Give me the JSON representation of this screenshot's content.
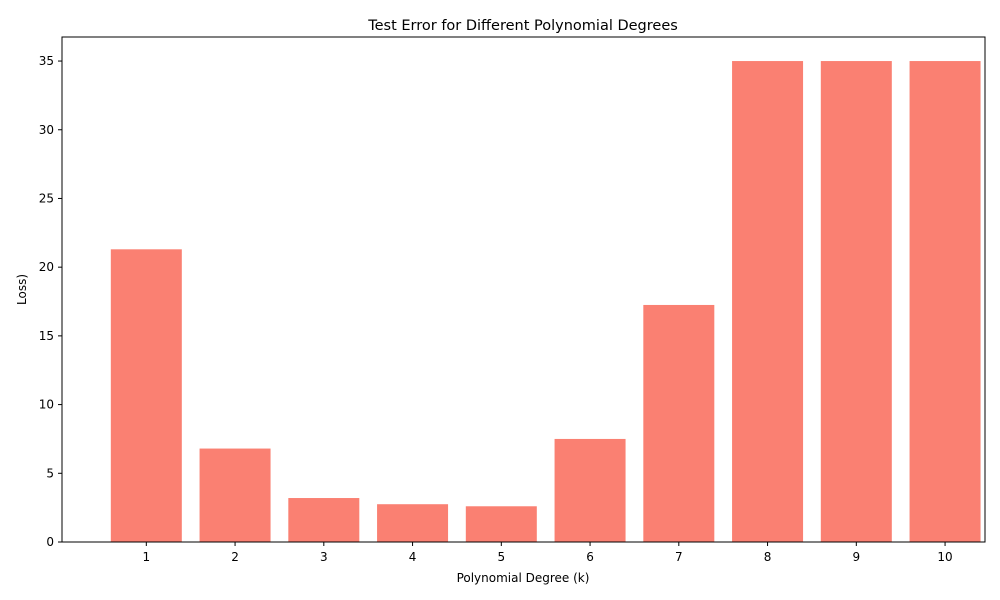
{
  "chart_data": {
    "type": "bar",
    "title": "Test Error for Different Polynomial Degrees",
    "xlabel": "Polynomial Degree (k)",
    "ylabel": "Loss)",
    "categories": [
      "1",
      "2",
      "3",
      "4",
      "5",
      "6",
      "7",
      "8",
      "9",
      "10"
    ],
    "values": [
      21.3,
      6.8,
      3.2,
      2.75,
      2.6,
      7.5,
      17.25,
      35,
      35,
      35
    ],
    "ylim": [
      0,
      36.75
    ],
    "yticks": [
      0,
      5,
      10,
      15,
      20,
      25,
      30,
      35
    ],
    "grid": false,
    "legend": "none",
    "bar_color": "#fa8072"
  }
}
